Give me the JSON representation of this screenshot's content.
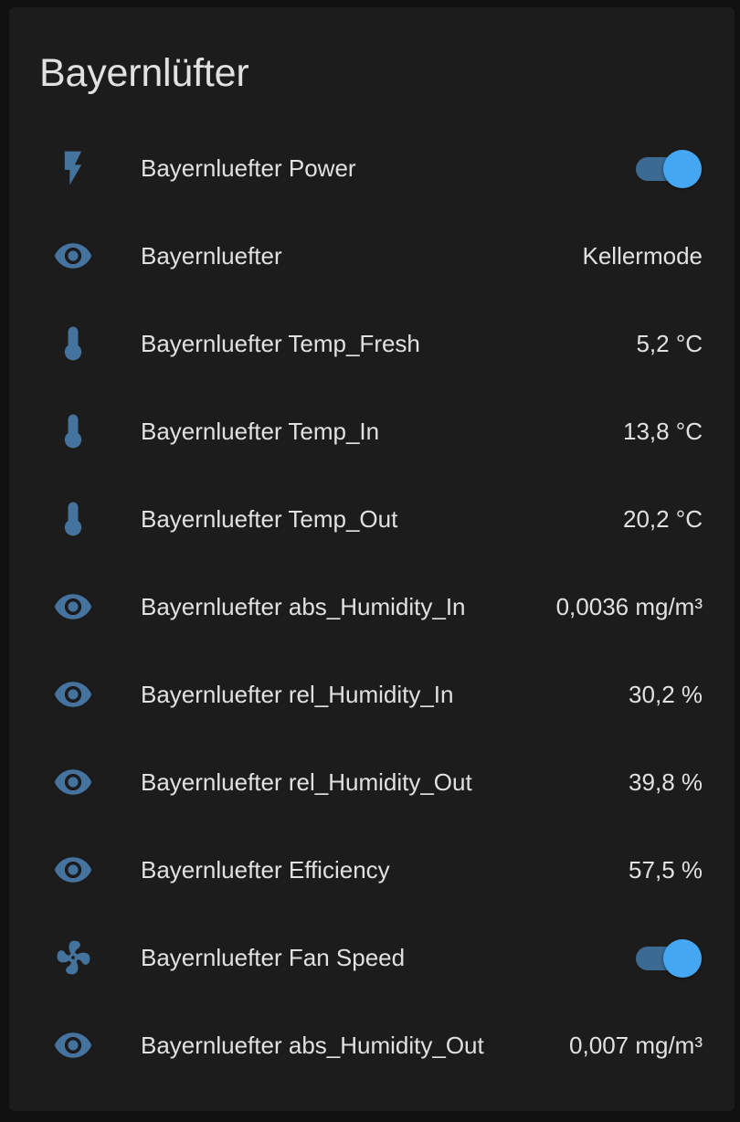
{
  "card": {
    "title": "Bayernlüfter"
  },
  "colors": {
    "icon": "#44739e",
    "toggle_track": "#3b6a93",
    "toggle_thumb": "#45a7f2",
    "card_bg": "#1c1c1c",
    "text": "#e1e1e1"
  },
  "rows": [
    {
      "icon": "flash-icon",
      "name": "Bayernluefter Power",
      "type": "toggle",
      "on": true
    },
    {
      "icon": "eye-icon",
      "name": "Bayernluefter",
      "type": "state",
      "state": "Kellermode"
    },
    {
      "icon": "thermometer-icon",
      "name": "Bayernluefter Temp_Fresh",
      "type": "state",
      "state": "5,2 °C"
    },
    {
      "icon": "thermometer-icon",
      "name": "Bayernluefter Temp_In",
      "type": "state",
      "state": "13,8 °C"
    },
    {
      "icon": "thermometer-icon",
      "name": "Bayernluefter Temp_Out",
      "type": "state",
      "state": "20,2 °C"
    },
    {
      "icon": "eye-icon",
      "name": "Bayernluefter abs_Humidity_In",
      "type": "state",
      "state": "0,0036 mg/m³"
    },
    {
      "icon": "eye-icon",
      "name": "Bayernluefter rel_Humidity_In",
      "type": "state",
      "state": "30,2 %"
    },
    {
      "icon": "eye-icon",
      "name": "Bayernluefter rel_Humidity_Out",
      "type": "state",
      "state": "39,8 %"
    },
    {
      "icon": "eye-icon",
      "name": "Bayernluefter Efficiency",
      "type": "state",
      "state": "57,5 %"
    },
    {
      "icon": "fan-icon",
      "name": "Bayernluefter Fan Speed",
      "type": "toggle",
      "on": true
    },
    {
      "icon": "eye-icon",
      "name": "Bayernluefter abs_Humidity_Out",
      "type": "state",
      "state": "0,007 mg/m³"
    }
  ]
}
